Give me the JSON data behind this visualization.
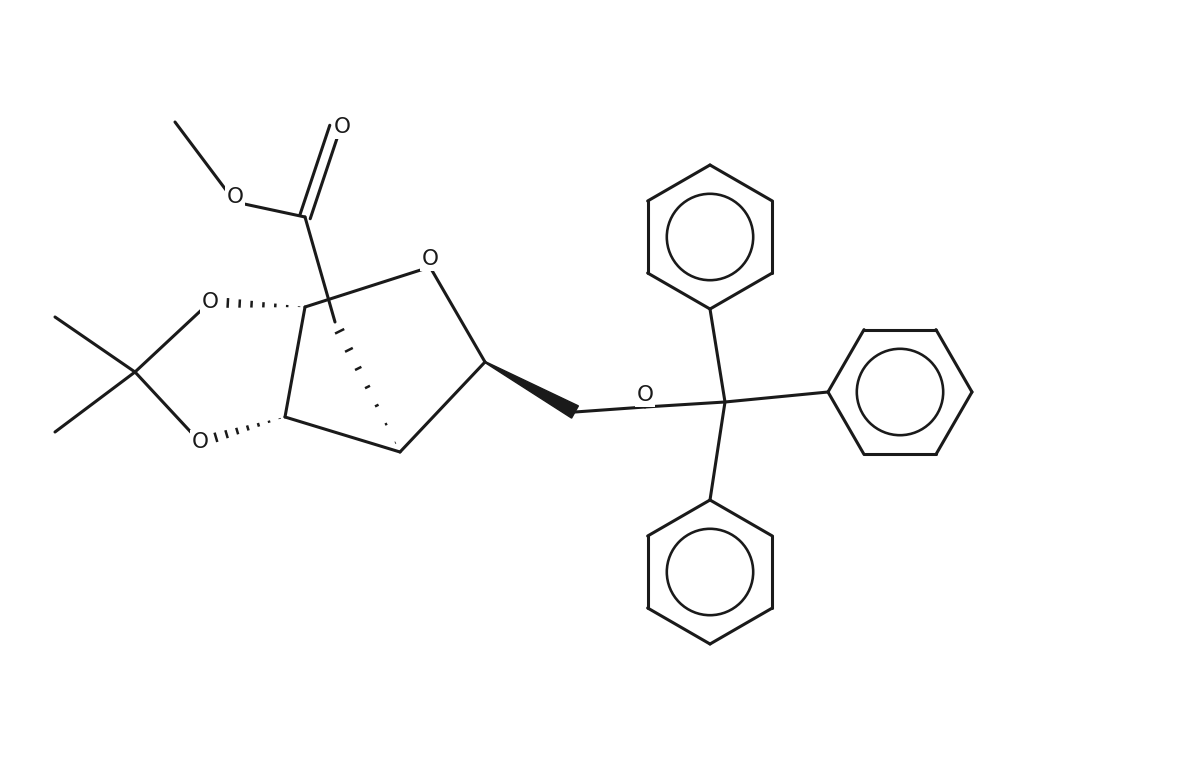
{
  "background_color": "#ffffff",
  "line_color": "#1a1a1a",
  "line_width": 2.2,
  "figsize": [
    12.0,
    7.72
  ],
  "dpi": 100,
  "xlim": [
    0,
    12
  ],
  "ylim": [
    0,
    7.72
  ]
}
